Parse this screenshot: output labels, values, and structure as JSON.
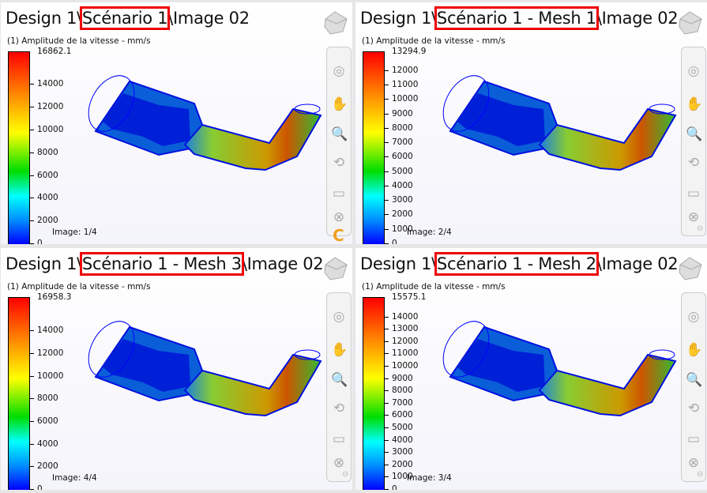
{
  "legend_title": "(1) Amplitude de la vitesse - mm/s",
  "colors": {
    "highlight": "#e00000",
    "logo": "#f0a020"
  },
  "panels": [
    {
      "title_prefix": "Design 1\\",
      "title_highlight": "Scénario 1",
      "title_suffix": "\\Image 02",
      "max_label": "16862.1",
      "max": 16862.1,
      "ticks": [
        "14000",
        "12000",
        "10000",
        "8000",
        "6000",
        "4000",
        "2000",
        "0"
      ],
      "image_label": "Image: 1/4",
      "toolbar_footer": "logo-icon"
    },
    {
      "title_prefix": "Design 1\\",
      "title_highlight": "Scénario 1 - Mesh 1",
      "title_suffix": "\\Image 02",
      "max_label": "13294.9",
      "max": 13294.9,
      "ticks": [
        "12000",
        "11000",
        "10000",
        "9000",
        "8000",
        "7000",
        "6000",
        "5000",
        "4000",
        "3000",
        "2000",
        "1000",
        "0"
      ],
      "image_label": "Image: 2/4",
      "toolbar_footer": "minus-icon"
    },
    {
      "title_prefix": "Design 1\\",
      "title_highlight": "Scénario 1 - Mesh 3",
      "title_suffix": "\\Image 02",
      "max_label": "16958.3",
      "max": 16958.3,
      "ticks": [
        "14000",
        "12000",
        "10000",
        "8000",
        "6000",
        "4000",
        "2000",
        "0"
      ],
      "image_label": "Image: 4/4",
      "toolbar_footer": "minus-icon"
    },
    {
      "title_prefix": "Design 1\\",
      "title_highlight": "Scénario 1 - Mesh 2",
      "title_suffix": "\\Image 02",
      "max_label": "15575.1",
      "max": 15575.1,
      "ticks": [
        "14000",
        "13000",
        "12000",
        "11000",
        "10000",
        "9000",
        "8000",
        "7000",
        "6000",
        "5000",
        "4000",
        "3000",
        "2000",
        "1000",
        "0"
      ],
      "image_label": "Image: 3/4",
      "toolbar_footer": "minus-icon"
    }
  ],
  "toolbar": [
    {
      "icon": "view-orientation-icon",
      "glyph": "◎"
    },
    {
      "icon": "pan-hand-icon",
      "glyph": "✋"
    },
    {
      "icon": "zoom-icon",
      "glyph": "🔍"
    },
    {
      "icon": "rotate-icon",
      "glyph": "⟲"
    },
    {
      "icon": "clip-plane-icon",
      "glyph": "▭"
    },
    {
      "icon": "fit-view-icon",
      "glyph": "⊗"
    }
  ]
}
